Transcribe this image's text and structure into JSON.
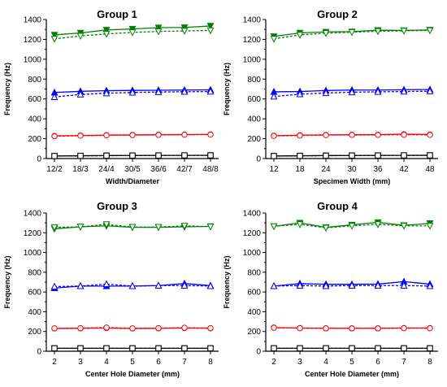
{
  "figure": {
    "panels": [
      {
        "title": "Group 1",
        "xlabel": "Width/Diameter",
        "ylabel": "Frequency (Hz)"
      },
      {
        "title": "Group 2",
        "xlabel": "Specimen Width (mm)",
        "ylabel": "Frequency (Hz)"
      },
      {
        "title": "Group 3",
        "xlabel": "Center Hole Diameter (mm)",
        "ylabel": "Frequency (Hz)"
      },
      {
        "title": "Group 4",
        "xlabel": "Center Hole Diameter (mm)",
        "ylabel": "Frequency (Hz)"
      }
    ]
  },
  "chart_data": [
    {
      "type": "line",
      "title": "Group 1",
      "xlabel": "Width/Diameter",
      "ylabel": "Frequency (Hz)",
      "categories": [
        "12/2",
        "18/3",
        "24/4",
        "30/5",
        "36/6",
        "42/7",
        "48/8"
      ],
      "ylim": [
        0,
        1400
      ],
      "yticks": [
        0,
        200,
        400,
        600,
        800,
        1000,
        1200,
        1400
      ],
      "series": [
        {
          "color": "#000000",
          "marker": "square",
          "style": "solid",
          "values": [
            25,
            28,
            30,
            31,
            32,
            32,
            33
          ]
        },
        {
          "color": "#000000",
          "marker": "square",
          "style": "dashed",
          "values": [
            25,
            27,
            29,
            30,
            31,
            32,
            32
          ]
        },
        {
          "color": "#ff0000",
          "marker": "circle",
          "style": "solid",
          "values": [
            228,
            232,
            236,
            238,
            240,
            241,
            243
          ]
        },
        {
          "color": "#ff0000",
          "marker": "circle",
          "style": "dashed",
          "values": [
            225,
            230,
            234,
            236,
            238,
            240,
            241
          ]
        },
        {
          "color": "#0000ff",
          "marker": "triangle",
          "style": "solid",
          "values": [
            665,
            677,
            683,
            686,
            688,
            690,
            692
          ]
        },
        {
          "color": "#0000ff",
          "marker": "triangle",
          "style": "dashed",
          "values": [
            620,
            645,
            658,
            665,
            670,
            673,
            675
          ]
        },
        {
          "color": "#008000",
          "marker": "triangle-down",
          "style": "solid",
          "values": [
            1245,
            1265,
            1295,
            1305,
            1318,
            1320,
            1335
          ]
        },
        {
          "color": "#008000",
          "marker": "triangle-down",
          "style": "dashed",
          "values": [
            1205,
            1235,
            1255,
            1270,
            1280,
            1285,
            1290
          ]
        }
      ]
    },
    {
      "type": "line",
      "title": "Group 2",
      "xlabel": "Specimen Width (mm)",
      "ylabel": "Frequency (Hz)",
      "categories": [
        "12",
        "18",
        "24",
        "30",
        "36",
        "42",
        "48"
      ],
      "ylim": [
        0,
        1400
      ],
      "yticks": [
        0,
        200,
        400,
        600,
        800,
        1000,
        1200,
        1400
      ],
      "series": [
        {
          "color": "#000000",
          "marker": "square",
          "style": "solid",
          "values": [
            25,
            28,
            30,
            31,
            32,
            32,
            33
          ]
        },
        {
          "color": "#000000",
          "marker": "square",
          "style": "dashed",
          "values": [
            25,
            27,
            29,
            30,
            31,
            32,
            32
          ]
        },
        {
          "color": "#ff0000",
          "marker": "circle",
          "style": "solid",
          "values": [
            230,
            235,
            238,
            240,
            240,
            245,
            242
          ]
        },
        {
          "color": "#ff0000",
          "marker": "circle",
          "style": "dashed",
          "values": [
            228,
            232,
            236,
            238,
            238,
            240,
            238
          ]
        },
        {
          "color": "#0000ff",
          "marker": "triangle",
          "style": "solid",
          "values": [
            672,
            675,
            685,
            690,
            690,
            693,
            695
          ]
        },
        {
          "color": "#0000ff",
          "marker": "triangle",
          "style": "dashed",
          "values": [
            625,
            648,
            660,
            668,
            672,
            675,
            678
          ]
        },
        {
          "color": "#008000",
          "marker": "triangle-down",
          "style": "solid",
          "values": [
            1230,
            1265,
            1275,
            1278,
            1292,
            1290,
            1295
          ]
        },
        {
          "color": "#008000",
          "marker": "triangle-down",
          "style": "dashed",
          "values": [
            1205,
            1245,
            1262,
            1272,
            1282,
            1286,
            1290
          ]
        }
      ]
    },
    {
      "type": "line",
      "title": "Group 3",
      "xlabel": "Center Hole Diameter (mm)",
      "ylabel": "Frequency (Hz)",
      "categories": [
        "2",
        "3",
        "4",
        "5",
        "6",
        "7",
        "8"
      ],
      "ylim": [
        0,
        1400
      ],
      "yticks": [
        0,
        200,
        400,
        600,
        800,
        1000,
        1200,
        1400
      ],
      "series": [
        {
          "color": "#000000",
          "marker": "square",
          "style": "solid",
          "values": [
            30,
            30,
            30,
            30,
            30,
            30,
            30
          ]
        },
        {
          "color": "#000000",
          "marker": "square",
          "style": "dashed",
          "values": [
            30,
            30,
            30,
            30,
            30,
            30,
            30
          ]
        },
        {
          "color": "#ff0000",
          "marker": "circle",
          "style": "solid",
          "values": [
            230,
            232,
            235,
            230,
            232,
            235,
            232
          ]
        },
        {
          "color": "#ff0000",
          "marker": "circle",
          "style": "dashed",
          "values": [
            232,
            234,
            240,
            232,
            234,
            238,
            234
          ]
        },
        {
          "color": "#0000ff",
          "marker": "triangle",
          "style": "solid",
          "values": [
            640,
            660,
            660,
            660,
            665,
            685,
            665
          ]
        },
        {
          "color": "#0000ff",
          "marker": "triangle",
          "style": "dashed",
          "values": [
            655,
            660,
            680,
            660,
            665,
            665,
            660
          ]
        },
        {
          "color": "#008000",
          "marker": "triangle-down",
          "style": "solid",
          "values": [
            1240,
            1260,
            1270,
            1255,
            1255,
            1260,
            1265
          ]
        },
        {
          "color": "#008000",
          "marker": "triangle-down",
          "style": "dashed",
          "values": [
            1255,
            1260,
            1285,
            1258,
            1258,
            1270,
            1262
          ]
        }
      ]
    },
    {
      "type": "line",
      "title": "Group 4",
      "xlabel": "Center Hole Diameter (mm)",
      "ylabel": "Frequency (Hz)",
      "categories": [
        "2",
        "3",
        "4",
        "5",
        "6",
        "7",
        "8"
      ],
      "ylim": [
        0,
        1400
      ],
      "yticks": [
        0,
        200,
        400,
        600,
        800,
        1000,
        1200,
        1400
      ],
      "series": [
        {
          "color": "#000000",
          "marker": "square",
          "style": "solid",
          "values": [
            30,
            30,
            30,
            30,
            30,
            30,
            30
          ]
        },
        {
          "color": "#000000",
          "marker": "square",
          "style": "dashed",
          "values": [
            30,
            30,
            30,
            30,
            30,
            30,
            30
          ]
        },
        {
          "color": "#ff0000",
          "marker": "circle",
          "style": "solid",
          "values": [
            240,
            235,
            232,
            232,
            232,
            235,
            235
          ]
        },
        {
          "color": "#ff0000",
          "marker": "circle",
          "style": "dashed",
          "values": [
            238,
            234,
            232,
            232,
            232,
            234,
            233
          ]
        },
        {
          "color": "#0000ff",
          "marker": "triangle",
          "style": "solid",
          "values": [
            660,
            685,
            678,
            678,
            680,
            705,
            680
          ]
        },
        {
          "color": "#0000ff",
          "marker": "triangle",
          "style": "dashed",
          "values": [
            660,
            665,
            660,
            665,
            665,
            665,
            660
          ]
        },
        {
          "color": "#008000",
          "marker": "triangle-down",
          "style": "solid",
          "values": [
            1265,
            1300,
            1255,
            1280,
            1305,
            1275,
            1295
          ]
        },
        {
          "color": "#008000",
          "marker": "triangle-down",
          "style": "dashed",
          "values": [
            1265,
            1285,
            1250,
            1270,
            1285,
            1270,
            1270
          ]
        }
      ]
    }
  ]
}
